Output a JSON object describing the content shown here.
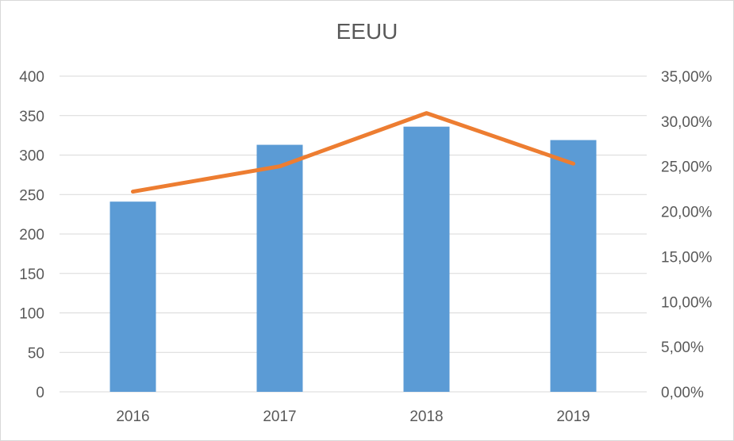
{
  "chart_data": {
    "type": "bar",
    "title": "EEUU",
    "categories": [
      "2016",
      "2017",
      "2018",
      "2019"
    ],
    "series": [
      {
        "name": "",
        "type": "bar",
        "axis": "left",
        "values": [
          241,
          313,
          336,
          319
        ],
        "color": "#5b9bd5"
      },
      {
        "name": "",
        "type": "line",
        "axis": "right",
        "values": [
          22.2,
          25.0,
          30.9,
          25.3
        ],
        "color": "#ed7d31"
      }
    ],
    "y_left": {
      "ticks": [
        "0",
        "50",
        "100",
        "150",
        "200",
        "250",
        "300",
        "350",
        "400"
      ],
      "ylim": [
        0,
        400
      ]
    },
    "y_right": {
      "ticks": [
        "0,00%",
        "5,00%",
        "10,00%",
        "15,00%",
        "20,00%",
        "25,00%",
        "30,00%",
        "35,00%"
      ],
      "ylim": [
        0,
        35
      ]
    },
    "grid": true,
    "legend": "none"
  }
}
